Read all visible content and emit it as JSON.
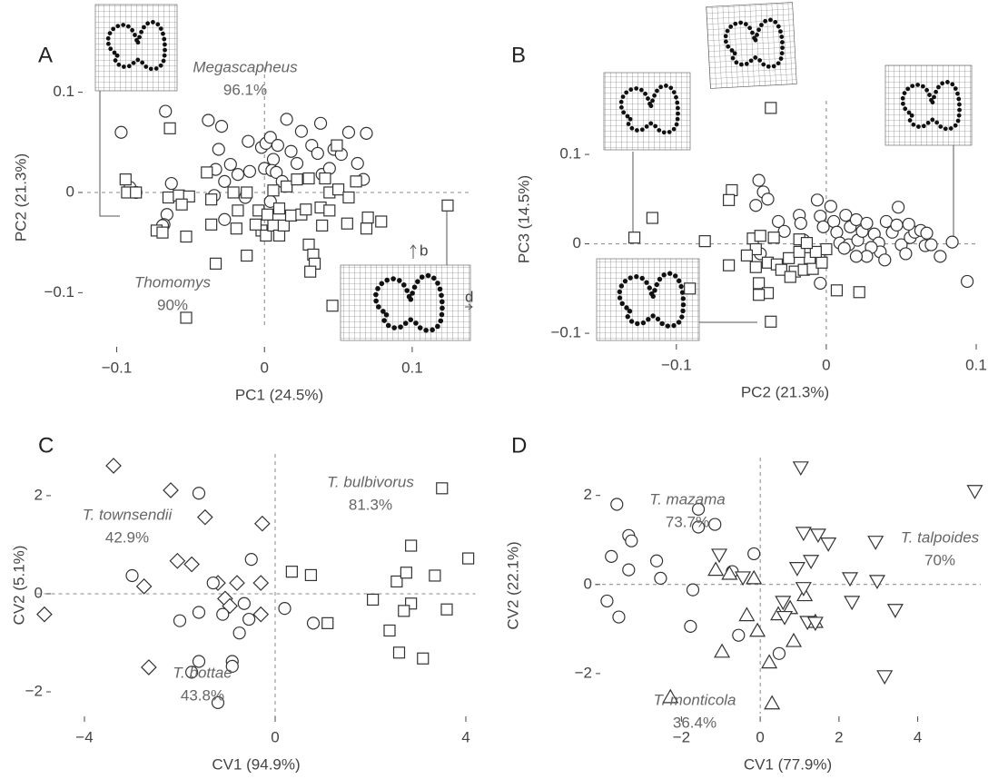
{
  "chart_data": [
    {
      "type": "scatter",
      "panel": "A",
      "xlabel": "PC1 (24.5%)",
      "ylabel": "PC2 (21.3%)",
      "xlim": [
        -0.12,
        0.14
      ],
      "ylim": [
        -0.135,
        0.125
      ],
      "xticks": [
        {
          "value": -0.1,
          "label": "−0.1"
        },
        0,
        0.1
      ],
      "yticks": [
        {
          "value": -0.1,
          "label": "−0.1"
        },
        0,
        0.1
      ],
      "annotations": [
        {
          "text": "Megascapheus",
          "percent": "96.1%"
        },
        {
          "text": "Thomomys",
          "percent": "90%"
        }
      ],
      "warp_labels": [
        "b",
        "d"
      ],
      "series": [
        {
          "marker": "circle",
          "color": "#333333",
          "x": [
            -0.097,
            -0.067,
            -0.066,
            -0.091,
            -0.087,
            -0.068,
            -0.063,
            -0.038,
            -0.029,
            -0.031,
            -0.033,
            -0.027,
            -0.023,
            -0.018,
            -0.011,
            -0.01,
            -0.013,
            -0.002,
            0.001,
            0.004,
            0.009,
            0.006,
            0,
            0.005,
            0.008,
            0.015,
            0.018,
            0.022,
            0.025,
            0.032,
            0.038,
            0.036,
            0.039,
            0.044,
            0.047,
            0.052,
            0.057,
            0.069,
            0.067,
            0.063,
            -0.034,
            -0.027,
            -0.069,
            0.004,
            0.012
          ],
          "values": [
            0.06,
            0.081,
            -0.022,
            0.005,
            0,
            -0.032,
            0.009,
            0.072,
            0.066,
            0.043,
            0.023,
            0.011,
            0.028,
            0.018,
            0.051,
            0.021,
            -0.005,
            0.045,
            0.049,
            0.055,
            0.047,
            0.033,
            0.024,
            0.022,
            0.02,
            0.073,
            0.041,
            0.029,
            0.061,
            0.047,
            0.069,
            0.039,
            0.018,
            0.024,
            0.043,
            0.038,
            0.06,
            0.059,
            0.013,
            0.029,
            -0.003,
            -0.027,
            -0.033,
            -0.009,
            0.011
          ]
        },
        {
          "marker": "square",
          "color": "#333333",
          "x": [
            -0.094,
            -0.093,
            -0.087,
            -0.065,
            -0.058,
            -0.051,
            -0.056,
            -0.073,
            -0.069,
            -0.053,
            -0.064,
            -0.053,
            -0.033,
            -0.036,
            -0.036,
            -0.039,
            -0.019,
            -0.012,
            -0.021,
            -0.012,
            -0.018,
            -0.004,
            -0.002,
            -0.006,
            0.001,
            0.006,
            0.006,
            0.01,
            0.002,
            0.015,
            0.01,
            0.013,
            0.018,
            0.025,
            0.03,
            0.028,
            0.03,
            0.033,
            0.034,
            0.031,
            0.038,
            0.039,
            0.041,
            0.044,
            0.044,
            0.049,
            0.05,
            0.056,
            0.046,
            0.057,
            0.07,
            0.079,
            0.069,
            0.124,
            0.062,
            0.022
          ],
          "values": [
            0.013,
            0,
            0,
            -0.005,
            -0.003,
            -0.004,
            -0.012,
            -0.038,
            -0.04,
            -0.044,
            0.064,
            -0.125,
            -0.071,
            -0.007,
            -0.032,
            0.02,
            -0.036,
            0,
            0,
            -0.063,
            -0.018,
            -0.018,
            -0.038,
            -0.032,
            -0.043,
            0.002,
            -0.033,
            -0.043,
            -0.022,
            0.006,
            -0.016,
            -0.033,
            -0.023,
            -0.022,
            0.014,
            -0.017,
            -0.052,
            -0.062,
            -0.071,
            -0.079,
            -0.015,
            -0.033,
            0.014,
            0,
            -0.018,
            0.047,
            0.003,
            -0.031,
            -0.113,
            -0.005,
            -0.025,
            -0.029,
            -0.036,
            -0.013,
            0.011,
            0.013
          ]
        }
      ]
    },
    {
      "type": "scatter",
      "panel": "B",
      "xlabel": "PC2 (21.3%)",
      "ylabel": "PC3 (14.5%)",
      "xlim": [
        -0.155,
        0.1
      ],
      "ylim": [
        -0.105,
        0.16
      ],
      "xticks": [
        {
          "value": -0.1,
          "label": "−0.1"
        },
        0,
        0.1
      ],
      "yticks": [
        {
          "value": -0.1,
          "label": "−0.1"
        },
        0,
        0.1
      ],
      "series": [
        {
          "marker": "circle",
          "color": "#333333",
          "x": [
            -0.045,
            -0.042,
            -0.039,
            -0.047,
            -0.032,
            -0.028,
            -0.044,
            -0.018,
            -0.017,
            -0.015,
            -0.006,
            -0.004,
            -0.002,
            0.003,
            0.005,
            0.007,
            0.009,
            0.013,
            0.016,
            0.02,
            0.015,
            0.021,
            0.024,
            0.027,
            0.032,
            0.035,
            0.036,
            0.04,
            0.044,
            0.048,
            0.05,
            0.053,
            0.056,
            0.059,
            0.063,
            0.066,
            0.07,
            0.076,
            0.084,
            0.094,
            0.047,
            0.03,
            0.039,
            0.027,
            0.02,
            0.012,
            -0.005,
            -0.004,
            0.055,
            0.067
          ],
          "values": [
            0.071,
            0.058,
            0.05,
            0.043,
            0.025,
            0.014,
            -0.011,
            0.032,
            0.023,
            0.004,
            0.049,
            0.031,
            0.019,
            0.042,
            0.025,
            0.013,
            0.001,
            0.032,
            0.019,
            0.027,
            -0.001,
            0.004,
            0.014,
            0.023,
            0.011,
            0.001,
            -0.009,
            0.025,
            0.013,
            0.041,
            -0.001,
            -0.011,
            0.007,
            0.013,
            0.015,
            -0.002,
            -0.001,
            -0.014,
            0.002,
            -0.042,
            0.021,
            -0.004,
            -0.018,
            -0.014,
            -0.014,
            -0.005,
            -0.014,
            -0.044,
            0.022,
            0.012
          ]
        },
        {
          "marker": "square",
          "color": "#333333",
          "x": [
            -0.037,
            -0.063,
            -0.065,
            -0.081,
            -0.065,
            -0.091,
            -0.128,
            -0.116,
            -0.049,
            -0.047,
            -0.044,
            -0.035,
            -0.053,
            -0.047,
            -0.045,
            -0.039,
            -0.033,
            -0.03,
            -0.025,
            -0.021,
            -0.015,
            -0.011,
            -0.009,
            -0.003,
            0,
            -0.007,
            -0.018,
            0.007,
            0.022,
            -0.037,
            -0.039,
            -0.045,
            -0.024,
            -0.018,
            -0.013
          ],
          "values": [
            0.152,
            0.06,
            0.049,
            0.003,
            -0.024,
            -0.05,
            0.007,
            0.029,
            0.006,
            -0.006,
            0.009,
            0.007,
            -0.013,
            -0.026,
            -0.044,
            -0.021,
            -0.023,
            -0.029,
            -0.016,
            -0.031,
            -0.029,
            -0.016,
            -0.028,
            -0.021,
            -0.006,
            -0.009,
            0.005,
            -0.052,
            -0.054,
            -0.087,
            -0.055,
            -0.057,
            -0.037,
            -0.009,
            0.001
          ]
        }
      ]
    },
    {
      "type": "scatter",
      "panel": "C",
      "xlabel": "CV1 (94.9%)",
      "ylabel": "CV2 (5.1%)",
      "xlim": [
        -5,
        4.2
      ],
      "ylim": [
        -2.5,
        2.85
      ],
      "xticks": [
        {
          "value": -4,
          "label": "−4"
        },
        0,
        4
      ],
      "yticks": [
        {
          "value": -2,
          "label": "−2"
        },
        0,
        2
      ],
      "annotations": [
        {
          "text": "T. townsendii",
          "percent": "42.9%"
        },
        {
          "text": "T. bulbivorus",
          "percent": "81.3%"
        },
        {
          "text": "T. bottae",
          "percent": "43.8%"
        }
      ],
      "series": [
        {
          "marker": "diamond",
          "color": "#333333",
          "x": [
            -3.39,
            -2.19,
            -1.47,
            -0.27,
            -2.05,
            -1.75,
            -2.75,
            -1.2,
            -0.8,
            -0.3,
            -1.05,
            -0.95,
            -0.3,
            -4.84,
            -2.65
          ],
          "values": [
            2.61,
            2.11,
            1.56,
            1.43,
            0.67,
            0.6,
            0.15,
            0.22,
            0.22,
            0.22,
            -0.1,
            -0.25,
            -0.42,
            -0.42,
            -1.5
          ]
        },
        {
          "marker": "circle",
          "color": "#333333",
          "x": [
            -1.6,
            -3.0,
            -1.3,
            -0.5,
            -2.0,
            -1.6,
            -1.1,
            -0.65,
            -0.75,
            -0.55,
            0.2,
            0.8,
            -1.6,
            -1.75,
            -0.9,
            -0.9,
            -1.2
          ],
          "values": [
            2.05,
            0.37,
            0.22,
            0.7,
            -0.55,
            -0.38,
            -0.42,
            -0.2,
            -0.8,
            -0.52,
            -0.3,
            -0.6,
            -1.38,
            -1.6,
            -1.38,
            -1.48,
            -2.22
          ]
        },
        {
          "marker": "square",
          "color": "#333333",
          "x": [
            3.5,
            2.85,
            0.35,
            0.75,
            2.55,
            2.75,
            3.35,
            4.05,
            2.05,
            2.85,
            2.7,
            3.6,
            1.1,
            2.4,
            2.6,
            3.1
          ],
          "values": [
            2.15,
            0.98,
            0.45,
            0.38,
            0.25,
            0.43,
            0.37,
            0.72,
            -0.12,
            -0.2,
            -0.35,
            -0.32,
            -0.6,
            -0.75,
            -1.2,
            -1.32
          ]
        }
      ]
    },
    {
      "type": "scatter",
      "panel": "D",
      "xlabel": "CV1 (77.9%)",
      "ylabel": "CV2 (22.1%)",
      "xlim": [
        -4.2,
        5.6
      ],
      "ylim": [
        -2.9,
        2.85
      ],
      "xticks": [
        {
          "value": -2,
          "label": "−2"
        },
        0,
        2,
        4
      ],
      "yticks": [
        {
          "value": -2,
          "label": "−2"
        },
        0,
        2
      ],
      "annotations": [
        {
          "text": "T. mazama",
          "percent": "73.7%"
        },
        {
          "text": "T. talpoides",
          "percent": "70%"
        },
        {
          "text": "T. monticola",
          "percent": "36.4%"
        }
      ],
      "series": [
        {
          "marker": "circle",
          "color": "#333333",
          "x": [
            -3.64,
            -3.34,
            -3.27,
            -3.78,
            -3.34,
            -2.63,
            -2.53,
            -1.57,
            -1.57,
            -1.15,
            -0.16,
            -0.71,
            -1.71,
            -1.77,
            -0.55,
            0.48,
            -3.89,
            -3.59
          ],
          "values": [
            1.8,
            1.1,
            0.98,
            0.63,
            0.33,
            0.53,
            0.14,
            1.69,
            1.29,
            1.35,
            0.69,
            0.29,
            -0.12,
            -0.94,
            -1.14,
            -1.55,
            -0.37,
            -0.73
          ]
        },
        {
          "marker": "triangle-up",
          "color": "#333333",
          "x": [
            -1.13,
            -0.78,
            -0.16,
            -0.34,
            -0.97,
            -0.07,
            0.23,
            0.85,
            0.46,
            0.76,
            1.13,
            1.4,
            -2.28,
            0.3
          ],
          "values": [
            0.33,
            0.24,
            0.14,
            -0.69,
            -1.51,
            -1.04,
            -1.75,
            -1.27,
            -0.67,
            -0.53,
            -0.24,
            -0.84,
            -2.53,
            -2.67
          ]
        },
        {
          "marker": "triangle-down",
          "color": "#333333",
          "x": [
            1.03,
            5.45,
            1.1,
            1.47,
            1.73,
            1.29,
            0.94,
            -1.04,
            -0.44,
            2.93,
            2.28,
            2.97,
            2.33,
            3.43,
            0.58,
            0.62,
            1.2,
            1.4,
            3.16,
            1.1
          ],
          "values": [
            2.63,
            2.1,
            1.16,
            1.12,
            0.92,
            0.53,
            0.37,
            0.67,
            0.16,
            0.96,
            0.14,
            0.08,
            -0.39,
            -0.57,
            -0.39,
            -0.73,
            -0.84,
            -0.86,
            -2.06,
            -0.08
          ]
        }
      ]
    }
  ]
}
